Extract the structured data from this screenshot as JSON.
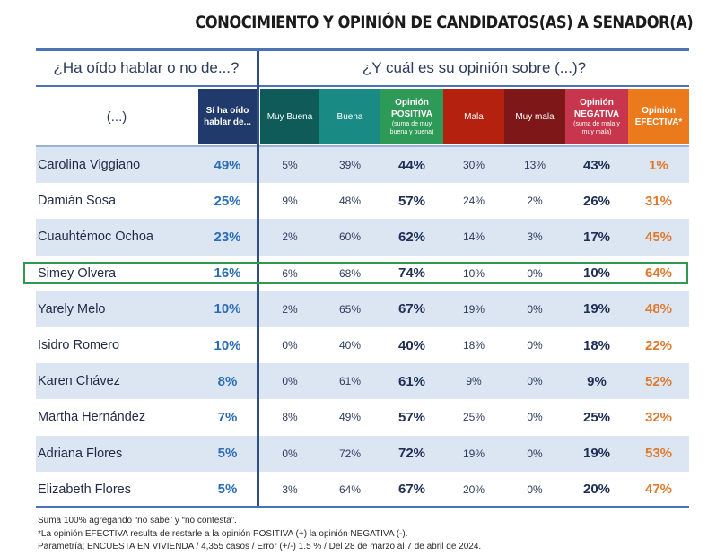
{
  "chart_data": {
    "type": "table",
    "title": "CONOCIMIENTO Y OPINIÓN DE CANDIDATOS(AS) A SENADOR(A)",
    "group_headers": {
      "left": "¿Ha oído hablar o no de...?",
      "right": "¿Y cuál es su opinión sobre (...)?"
    },
    "columns": {
      "name": "(...)",
      "heard": "Sí ha oído hablar de...",
      "muy_buena": "Muy Buena",
      "buena": "Buena",
      "positiva": "Opinión POSITIVA",
      "positiva_sub": "(suma de muy buena y buena)",
      "mala": "Mala",
      "muy_mala": "Muy mala",
      "negativa": "Opinión NEGATIVA",
      "negativa_sub": "(suma de mala y muy mala)",
      "efectiva": "Opinión EFECTIVA*"
    },
    "highlighted_row": "Simey Olvera",
    "rows": [
      {
        "name": "Carolina Viggiano",
        "heard": "49%",
        "muy_buena": "5%",
        "buena": "39%",
        "positiva": "44%",
        "mala": "30%",
        "muy_mala": "13%",
        "negativa": "43%",
        "efectiva": "1%"
      },
      {
        "name": "Damián Sosa",
        "heard": "25%",
        "muy_buena": "9%",
        "buena": "48%",
        "positiva": "57%",
        "mala": "24%",
        "muy_mala": "2%",
        "negativa": "26%",
        "efectiva": "31%"
      },
      {
        "name": "Cuauhtémoc Ochoa",
        "heard": "23%",
        "muy_buena": "2%",
        "buena": "60%",
        "positiva": "62%",
        "mala": "14%",
        "muy_mala": "3%",
        "negativa": "17%",
        "efectiva": "45%"
      },
      {
        "name": "Simey Olvera",
        "heard": "16%",
        "muy_buena": "6%",
        "buena": "68%",
        "positiva": "74%",
        "mala": "10%",
        "muy_mala": "0%",
        "negativa": "10%",
        "efectiva": "64%"
      },
      {
        "name": "Yarely Melo",
        "heard": "10%",
        "muy_buena": "2%",
        "buena": "65%",
        "positiva": "67%",
        "mala": "19%",
        "muy_mala": "0%",
        "negativa": "19%",
        "efectiva": "48%"
      },
      {
        "name": "Isidro Romero",
        "heard": "10%",
        "muy_buena": "0%",
        "buena": "40%",
        "positiva": "40%",
        "mala": "18%",
        "muy_mala": "0%",
        "negativa": "18%",
        "efectiva": "22%"
      },
      {
        "name": "Karen Chávez",
        "heard": "8%",
        "muy_buena": "0%",
        "buena": "61%",
        "positiva": "61%",
        "mala": "9%",
        "muy_mala": "0%",
        "negativa": "9%",
        "efectiva": "52%"
      },
      {
        "name": "Martha Hernández",
        "heard": "7%",
        "muy_buena": "8%",
        "buena": "49%",
        "positiva": "57%",
        "mala": "25%",
        "muy_mala": "0%",
        "negativa": "25%",
        "efectiva": "32%"
      },
      {
        "name": "Adriana Flores",
        "heard": "5%",
        "muy_buena": "0%",
        "buena": "72%",
        "positiva": "72%",
        "mala": "19%",
        "muy_mala": "0%",
        "negativa": "19%",
        "efectiva": "53%"
      },
      {
        "name": "Elizabeth Flores",
        "heard": "5%",
        "muy_buena": "3%",
        "buena": "64%",
        "positiva": "67%",
        "mala": "20%",
        "muy_mala": "0%",
        "negativa": "20%",
        "efectiva": "47%"
      }
    ],
    "notes": [
      "Suma 100% agregando “no sabe” y “no contesta”.",
      "*La opinión EFECTIVA resulta de restarle a la opinión POSITIVA (+) la opinión NEGATIVA (-).",
      "Parametría; ENCUESTA EN VIVIENDA / 4,355 casos / Error (+/-) 1.5 % / Del 28 de marzo al 7 de abril de 2024."
    ]
  },
  "colors": {
    "accent_blue": "#4a73b8",
    "navy": "#1f3a6b",
    "positive": "#2e9a57",
    "negative": "#c7364d",
    "effective": "#ea7a1c",
    "highlight": "#2f9a4f"
  }
}
